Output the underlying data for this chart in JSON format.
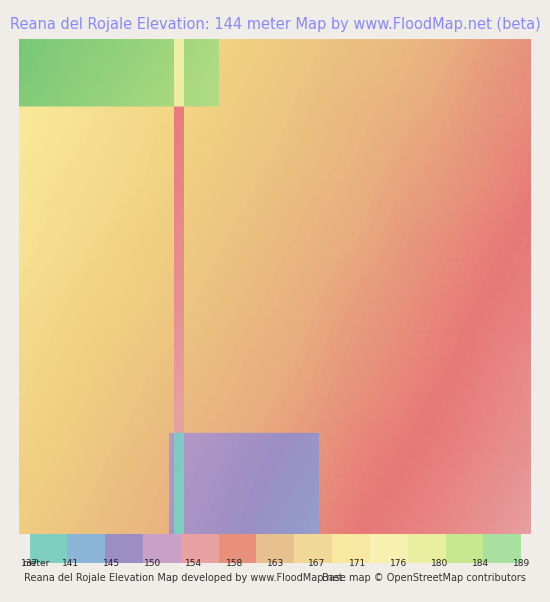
{
  "title": "Reana del Rojale Elevation: 144 meter Map by www.FloodMap.net (beta)",
  "title_color": "#8888ff",
  "title_fontsize": 10.5,
  "background_color": "#f0ede8",
  "map_bg": "#d4c8b8",
  "colorbar_label": "meter 137",
  "colorbar_ticks": [
    137,
    141,
    145,
    150,
    154,
    158,
    163,
    167,
    171,
    176,
    180,
    184,
    189
  ],
  "colorbar_colors": [
    "#7ecfc0",
    "#8ab4d8",
    "#9b8ec4",
    "#c9a0c8",
    "#e8a0a0",
    "#e8907a",
    "#e8c090",
    "#f0d898",
    "#f8e8a0",
    "#f8f0b0",
    "#e8f0a0",
    "#c8e890",
    "#a8e0a0"
  ],
  "footer_left": "Reana del Rojale Elevation Map developed by www.FloodMap.net",
  "footer_right": "Base map © OpenStreetMap contributors",
  "footer_fontsize": 7,
  "fig_width": 5.12,
  "fig_height": 5.82
}
